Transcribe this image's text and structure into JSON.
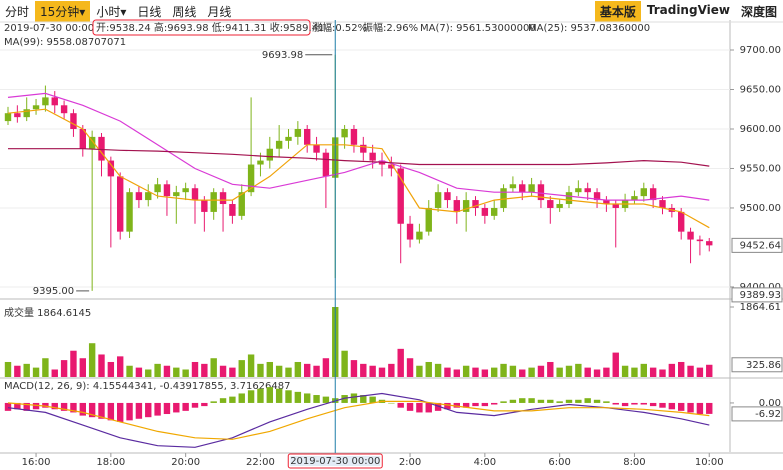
{
  "toolbar": {
    "intervals": [
      "分时",
      "15分钟▾",
      "小时▾",
      "日线",
      "周线",
      "月线"
    ],
    "active_interval": 1,
    "views": [
      "基本版",
      "TradingView",
      "深度图"
    ],
    "active_view": 0
  },
  "chart_data": [
    {
      "type": "candlestick",
      "date": "2019-07-30 00:00",
      "ohlc_text": "开:9538.24 高:9693.98 低:9411.31 收:9589.41",
      "change_text": "涨幅:0.52%",
      "amplitude_text": "振幅:2.96%",
      "up_color": "#7fb41a",
      "down_color": "#e8196f",
      "open": [
        9610,
        9620,
        9615,
        9625,
        9630,
        9640,
        9630,
        9620,
        9600,
        9575,
        9590,
        9560,
        9540,
        9470,
        9520,
        9510,
        9520,
        9530,
        9515,
        9520,
        9525,
        9510,
        9495,
        9520,
        9505,
        9490,
        9520,
        9555,
        9560,
        9575,
        9585,
        9590,
        9600,
        9580,
        9570,
        9538.24,
        9589.41,
        9600,
        9580,
        9570,
        9560,
        9555,
        9550,
        9480,
        9460,
        9470,
        9500,
        9520,
        9510,
        9495,
        9510,
        9500,
        9490,
        9500,
        9525,
        9530,
        9520,
        9530,
        9510,
        9500,
        9505,
        9520,
        9525,
        9520,
        9510,
        9505,
        9500,
        9510,
        9515,
        9525,
        9510,
        9500,
        9495,
        9470,
        9460,
        9458
      ],
      "high": [
        9628,
        9630,
        9640,
        9638,
        9655,
        9648,
        9636,
        9625,
        9605,
        9598,
        9595,
        9565,
        9545,
        9525,
        9528,
        9530,
        9538,
        9535,
        9528,
        9532,
        9530,
        9515,
        9525,
        9525,
        9510,
        9530,
        9640,
        9570,
        9590,
        9605,
        9600,
        9610,
        9605,
        9590,
        9575,
        9693.98,
        9605,
        9605,
        9590,
        9580,
        9570,
        9565,
        9555,
        9490,
        9480,
        9510,
        9530,
        9525,
        9515,
        9520,
        9515,
        9505,
        9510,
        9530,
        9540,
        9535,
        9538,
        9535,
        9515,
        9512,
        9528,
        9535,
        9532,
        9525,
        9515,
        9510,
        9518,
        9522,
        9532,
        9530,
        9515,
        9505,
        9500,
        9475,
        9465,
        9462
      ],
      "low": [
        9605,
        9608,
        9610,
        9618,
        9622,
        9620,
        9612,
        9590,
        9565,
        9395,
        9540,
        9450,
        9460,
        9462,
        9500,
        9502,
        9512,
        9490,
        9480,
        9510,
        9480,
        9470,
        9485,
        9470,
        9480,
        9485,
        9515,
        9540,
        9550,
        9565,
        9575,
        9580,
        9570,
        9560,
        9500,
        9411.31,
        9575,
        9570,
        9560,
        9550,
        9540,
        9540,
        9430,
        9450,
        9455,
        9465,
        9495,
        9500,
        9480,
        9470,
        9490,
        9480,
        9485,
        9495,
        9520,
        9510,
        9515,
        9500,
        9480,
        9495,
        9500,
        9515,
        9510,
        9500,
        9495,
        9450,
        9495,
        9505,
        9508,
        9500,
        9492,
        9488,
        9460,
        9430,
        9440,
        9445
      ],
      "close": [
        9620,
        9615,
        9625,
        9630,
        9640,
        9630,
        9620,
        9600,
        9575,
        9590,
        9560,
        9540,
        9470,
        9520,
        9510,
        9520,
        9530,
        9515,
        9520,
        9525,
        9510,
        9495,
        9520,
        9505,
        9490,
        9520,
        9555,
        9560,
        9575,
        9585,
        9590,
        9600,
        9580,
        9570,
        9540,
        9589.41,
        9600,
        9580,
        9570,
        9560,
        9555,
        9550,
        9480,
        9460,
        9470,
        9500,
        9520,
        9510,
        9495,
        9510,
        9500,
        9490,
        9500,
        9525,
        9530,
        9520,
        9530,
        9510,
        9500,
        9505,
        9520,
        9525,
        9520,
        9510,
        9505,
        9500,
        9510,
        9515,
        9525,
        9510,
        9500,
        9495,
        9470,
        9460,
        9458,
        9452.64
      ],
      "series": [
        {
          "name": "MA(7): 9561.53000000",
          "color": "#f0a30a",
          "x": [
            0,
            4,
            8,
            12,
            16,
            20,
            24,
            28,
            32,
            36,
            40,
            44,
            48,
            52,
            56,
            60,
            64,
            68,
            72,
            75
          ],
          "values": [
            9620,
            9625,
            9600,
            9540,
            9515,
            9510,
            9510,
            9540,
            9580,
            9580,
            9575,
            9500,
            9495,
            9510,
            9515,
            9510,
            9505,
            9505,
            9495,
            9475
          ]
        },
        {
          "name": "MA(25): 9537.08360000",
          "color": "#d93ad6",
          "x": [
            0,
            4,
            8,
            12,
            16,
            20,
            24,
            28,
            32,
            36,
            40,
            44,
            48,
            52,
            56,
            60,
            64,
            68,
            72,
            75
          ],
          "values": [
            9640,
            9645,
            9630,
            9610,
            9580,
            9550,
            9530,
            9525,
            9535,
            9545,
            9560,
            9545,
            9525,
            9520,
            9520,
            9515,
            9510,
            9510,
            9515,
            9510
          ]
        },
        {
          "name": "MA(99): 9558.08707071",
          "color": "#a3124f",
          "x": [
            0,
            4,
            8,
            12,
            16,
            20,
            24,
            28,
            32,
            36,
            40,
            44,
            48,
            52,
            56,
            60,
            64,
            68,
            72,
            75
          ],
          "values": [
            9575,
            9575,
            9575,
            9573,
            9572,
            9570,
            9568,
            9565,
            9563,
            9560,
            9558,
            9555,
            9555,
            9555,
            9555,
            9555,
            9557,
            9560,
            9558,
            9553
          ]
        }
      ],
      "ylim": [
        9386,
        9738
      ],
      "yticks": [
        {
          "value": 9700,
          "label": "9700.00"
        },
        {
          "value": 9650,
          "label": "9650.00"
        },
        {
          "value": 9600,
          "label": "9600.00"
        },
        {
          "value": 9550,
          "label": "9550.00"
        },
        {
          "value": 9500,
          "label": "9500.00"
        },
        {
          "value": 9400,
          "label": "9400.00"
        }
      ],
      "grid": true,
      "last_price": {
        "value": 9452.64,
        "label": "9452.64"
      },
      "bottom_marker": {
        "value": 9389.93,
        "label": "9389.93"
      },
      "high_marker": {
        "index": 35,
        "value": 9693.98,
        "label": "9693.98"
      },
      "low_marker": {
        "index": 9,
        "value": 9395,
        "label": "9395.00"
      }
    },
    {
      "type": "bar",
      "title": "成交量 1864.6145",
      "values": [
        400,
        300,
        350,
        250,
        500,
        200,
        450,
        700,
        500,
        900,
        600,
        400,
        550,
        300,
        250,
        200,
        350,
        300,
        250,
        200,
        400,
        350,
        500,
        300,
        250,
        450,
        600,
        350,
        400,
        300,
        250,
        400,
        350,
        300,
        500,
        1864.61,
        700,
        450,
        350,
        300,
        250,
        350,
        750,
        500,
        300,
        400,
        350,
        250,
        200,
        300,
        250,
        200,
        250,
        350,
        300,
        200,
        250,
        300,
        400,
        250,
        300,
        350,
        250,
        200,
        250,
        650,
        300,
        250,
        350,
        250,
        200,
        350,
        400,
        300,
        250,
        325.86
      ],
      "ylim": [
        0,
        1864.61
      ],
      "yticks": [
        {
          "value": 1864.61,
          "label": "1864.61"
        }
      ],
      "last_value": {
        "value": 325.86,
        "label": "325.86"
      }
    },
    {
      "type": "bar",
      "title": "MACD(12, 26, 9): 4.15544341, -0.43917855, 3.71626487",
      "values": [
        -5,
        -4,
        -5,
        -4,
        -3,
        -4,
        -5,
        -6,
        -8,
        -9,
        -10,
        -11,
        -12,
        -11,
        -10,
        -9,
        -8,
        -7,
        -6,
        -5,
        -3,
        -2,
        1,
        3,
        4,
        6,
        8,
        9,
        10,
        9,
        8,
        7,
        6,
        5,
        4,
        3,
        5,
        6,
        5,
        4,
        2,
        0,
        -3,
        -5,
        -6,
        -6,
        -5,
        -4,
        -3,
        -3,
        -2,
        -2,
        -1,
        1,
        2,
        3,
        3,
        2,
        2,
        1,
        2,
        2,
        3,
        2,
        1,
        -1,
        -2,
        -1,
        -1,
        -2,
        -3,
        -4,
        -5,
        -6,
        -7,
        -6.92
      ],
      "series": [
        {
          "name": "DIF",
          "color": "#5a2ba0",
          "x": [
            0,
            4,
            8,
            12,
            16,
            20,
            24,
            28,
            32,
            36,
            40,
            44,
            48,
            52,
            56,
            60,
            64,
            68,
            72,
            75
          ],
          "values": [
            -3,
            -6,
            -14,
            -22,
            -27,
            -28,
            -22,
            -12,
            -4,
            3,
            6,
            2,
            -6,
            -8,
            -4,
            -1,
            -3,
            -6,
            -10,
            -14
          ]
        },
        {
          "name": "DEA",
          "color": "#f0a800",
          "x": [
            0,
            4,
            8,
            12,
            16,
            20,
            24,
            28,
            32,
            36,
            40,
            44,
            48,
            52,
            56,
            60,
            64,
            68,
            72,
            75
          ],
          "values": [
            0,
            -2,
            -6,
            -12,
            -18,
            -22,
            -23,
            -18,
            -10,
            -3,
            1,
            1,
            -2,
            -5,
            -5,
            -3,
            -3,
            -4,
            -6,
            -8
          ]
        }
      ],
      "ylim": [
        -31,
        14.5
      ],
      "yticks": [
        {
          "value": 0,
          "label": "0.00"
        }
      ],
      "last_value": {
        "value": -6.92,
        "label": "-6.92"
      },
      "xticks": [
        {
          "value": 3,
          "label": "16:00"
        },
        {
          "value": 11,
          "label": "18:00"
        },
        {
          "value": 19,
          "label": "20:00"
        },
        {
          "value": 27,
          "label": "22:00"
        },
        {
          "value": 43,
          "label": "2:00"
        },
        {
          "value": 51,
          "label": "4:00"
        },
        {
          "value": 59,
          "label": "6:00"
        },
        {
          "value": 67,
          "label": "8:00"
        },
        {
          "value": 75,
          "label": "10:00"
        }
      ],
      "crosshair": {
        "index": 35,
        "label": "2019-07-30 00:00"
      }
    }
  ]
}
